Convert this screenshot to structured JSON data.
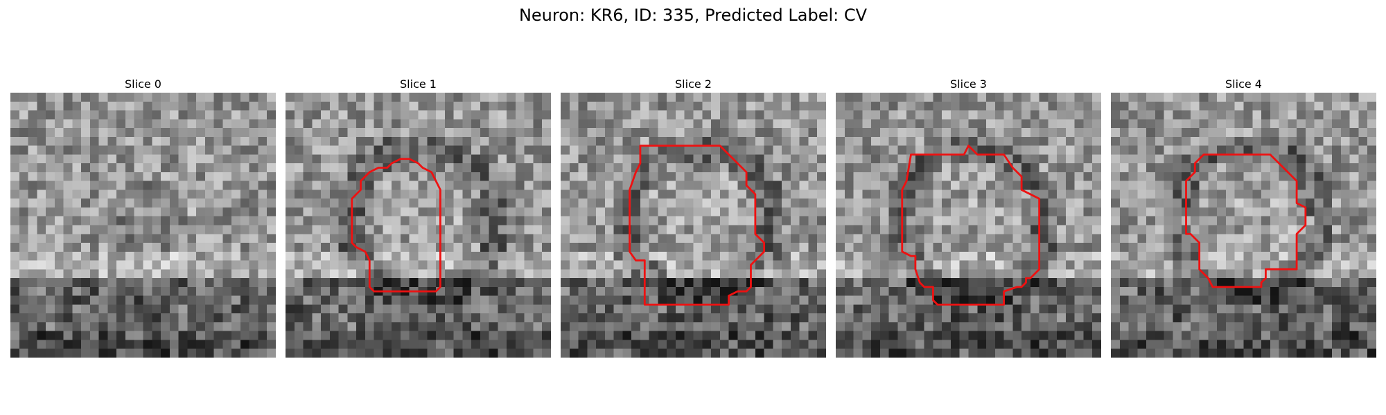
{
  "figure": {
    "title": "Neuron: KR6, ID: 335, Predicted Label: CV",
    "contour_color": "#ee1111",
    "slices": [
      {
        "label": "Slice 0",
        "has_contour": false
      },
      {
        "label": "Slice 1",
        "has_contour": true
      },
      {
        "label": "Slice 2",
        "has_contour": true
      },
      {
        "label": "Slice 3",
        "has_contour": true
      },
      {
        "label": "Slice 4",
        "has_contour": true
      }
    ]
  }
}
